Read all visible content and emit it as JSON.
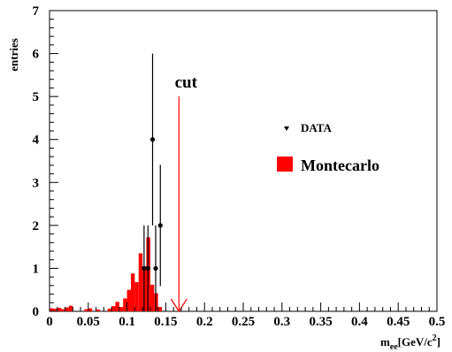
{
  "chart_data": {
    "type": "bar",
    "xlabel": "m",
    "xlabel_sub": "ee",
    "xlabel_unit": "[GeV/c",
    "xlabel_sup": "2",
    "xlabel_close": "]",
    "ylabel": "entries",
    "xlim": [
      0,
      0.5
    ],
    "ylim": [
      0,
      7
    ],
    "x_ticks": [
      "0",
      "0.05",
      "0.1",
      "0.15",
      "0.2",
      "0.25",
      "0.3",
      "0.35",
      "0.4",
      "0.45",
      "0.5"
    ],
    "y_ticks": [
      "0",
      "1",
      "2",
      "3",
      "4",
      "5",
      "6",
      "7"
    ],
    "grid": false,
    "legend_position": "right",
    "montecarlo_color": "#ff0000",
    "series": [
      {
        "name": "Montecarlo",
        "bin_width": 0.005,
        "bins": [
          {
            "x": 0.0,
            "y": 0.07
          },
          {
            "x": 0.005,
            "y": 0.06
          },
          {
            "x": 0.01,
            "y": 0.08
          },
          {
            "x": 0.015,
            "y": 0.05
          },
          {
            "x": 0.02,
            "y": 0.09
          },
          {
            "x": 0.025,
            "y": 0.13
          },
          {
            "x": 0.045,
            "y": 0.05
          },
          {
            "x": 0.05,
            "y": 0.07
          },
          {
            "x": 0.06,
            "y": 0.04
          },
          {
            "x": 0.075,
            "y": 0.06
          },
          {
            "x": 0.08,
            "y": 0.12
          },
          {
            "x": 0.085,
            "y": 0.22
          },
          {
            "x": 0.09,
            "y": 0.1
          },
          {
            "x": 0.095,
            "y": 0.3
          },
          {
            "x": 0.1,
            "y": 0.5
          },
          {
            "x": 0.105,
            "y": 0.88
          },
          {
            "x": 0.11,
            "y": 0.68
          },
          {
            "x": 0.115,
            "y": 1.35
          },
          {
            "x": 0.12,
            "y": 1.05
          },
          {
            "x": 0.125,
            "y": 1.72
          },
          {
            "x": 0.13,
            "y": 0.62
          },
          {
            "x": 0.135,
            "y": 0.42
          },
          {
            "x": 0.14,
            "y": 0.1
          }
        ]
      },
      {
        "name": "DATA",
        "points": [
          {
            "x": 0.122,
            "y": 1,
            "err": 1.0
          },
          {
            "x": 0.127,
            "y": 1,
            "err": 1.0
          },
          {
            "x": 0.133,
            "y": 4,
            "err": 2.0
          },
          {
            "x": 0.137,
            "y": 1,
            "err": 1.0
          },
          {
            "x": 0.143,
            "y": 2,
            "err": 1.41
          }
        ]
      }
    ],
    "annotations": {
      "cut_label": "cut",
      "cut_x": 0.167,
      "cut_y_top": 5.0,
      "cut_color": "#ff0000"
    }
  }
}
